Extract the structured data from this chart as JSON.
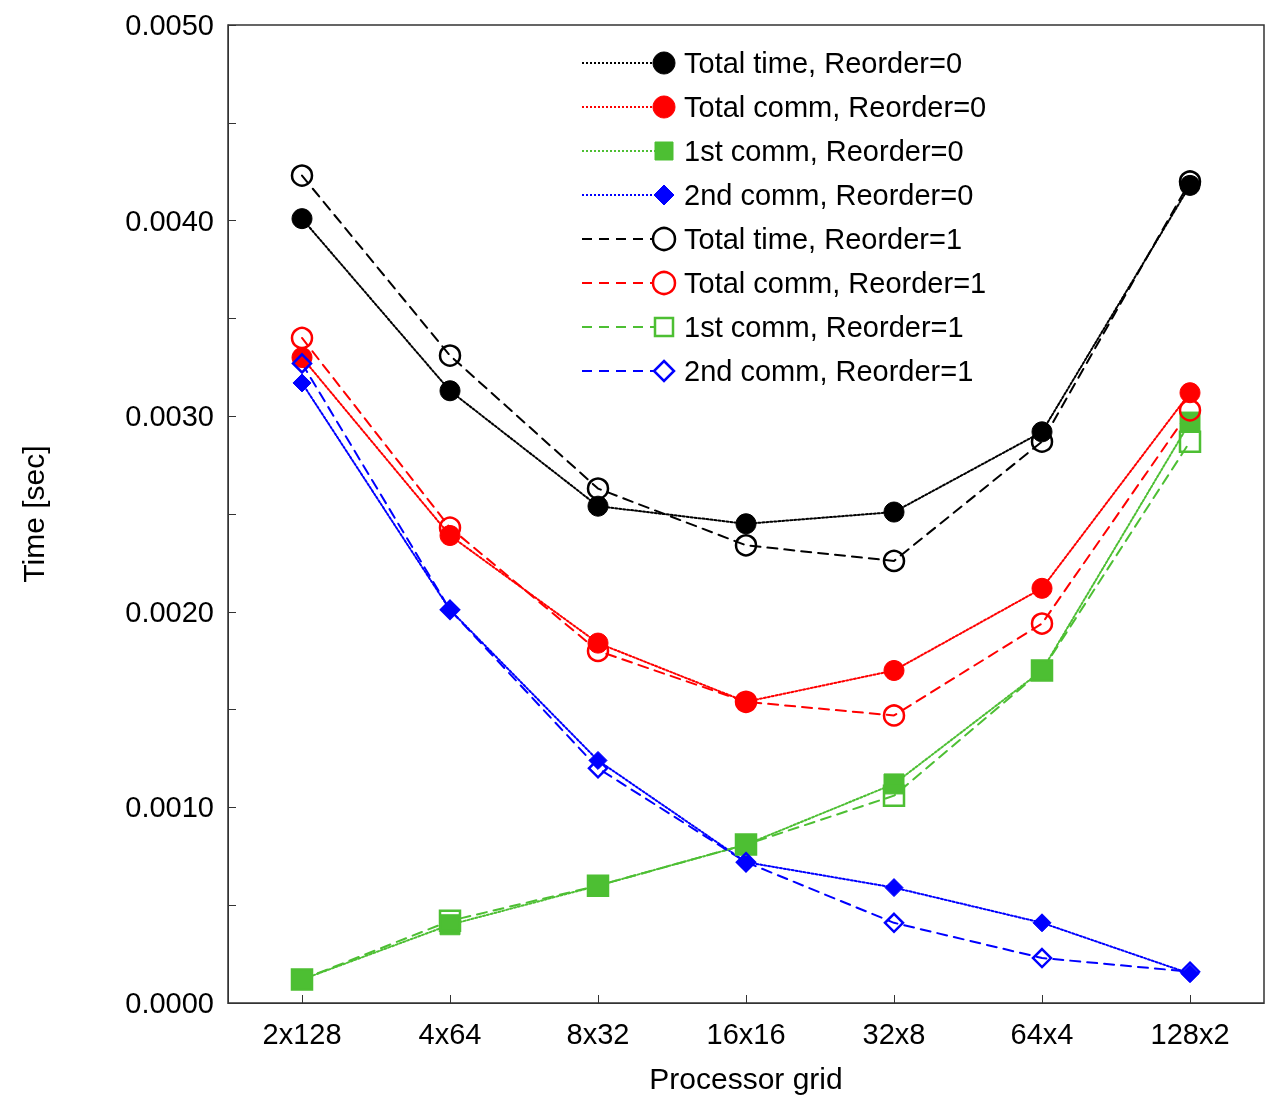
{
  "chart_data": {
    "type": "line",
    "xlabel": "Processor grid",
    "ylabel": "Time [sec]",
    "categories": [
      "2x128",
      "4x64",
      "8x32",
      "16x16",
      "32x8",
      "64x4",
      "128x2"
    ],
    "ylim": [
      0,
      0.005
    ],
    "yticks": [
      {
        "value": 0,
        "label": "0.0000"
      },
      {
        "value": 0.0005,
        "label": null
      },
      {
        "value": 0.001,
        "label": "0.0010"
      },
      {
        "value": 0.0015,
        "label": null
      },
      {
        "value": 0.002,
        "label": "0.0020"
      },
      {
        "value": 0.0025,
        "label": null
      },
      {
        "value": 0.003,
        "label": "0.0030"
      },
      {
        "value": 0.0035,
        "label": null
      },
      {
        "value": 0.004,
        "label": "0.0040"
      },
      {
        "value": 0.0045,
        "label": null
      },
      {
        "value": 0.005,
        "label": "0.0050"
      }
    ],
    "grid": false,
    "legend": "top right",
    "series": [
      {
        "name": "Total time, Reorder=0",
        "color": "#000000",
        "marker": "circle",
        "line_style": "dotted",
        "values": [
          0.00401,
          0.00313,
          0.00254,
          0.00245,
          0.00251,
          0.00292,
          0.00418
        ]
      },
      {
        "name": "Total comm, Reorder=0",
        "color": "#ff0000",
        "marker": "circle",
        "line_style": "dotted",
        "values": [
          0.0033,
          0.00239,
          0.00184,
          0.00154,
          0.0017,
          0.00212,
          0.00312
        ]
      },
      {
        "name": "1st comm, Reorder=0",
        "color": "#4dbf33",
        "marker": "square",
        "line_style": "dotted",
        "values": [
          0.00012,
          0.0004,
          0.0006,
          0.00081,
          0.00112,
          0.0017,
          0.00297
        ]
      },
      {
        "name": "2nd comm, Reorder=0",
        "color": "#0000ff",
        "marker": "diamond",
        "line_style": "dotted",
        "values": [
          0.00317,
          0.00201,
          0.00124,
          0.00072,
          0.00059,
          0.00041,
          0.00015
        ]
      },
      {
        "name": "Total time, Reorder=1",
        "color": "#000000",
        "marker": "circle",
        "line_style": "dashed",
        "values": [
          0.00423,
          0.00331,
          0.00263,
          0.00234,
          0.00226,
          0.00287,
          0.0042
        ]
      },
      {
        "name": "Total comm, Reorder=1",
        "color": "#ff0000",
        "marker": "circle",
        "line_style": "dashed",
        "values": [
          0.0034,
          0.00243,
          0.0018,
          0.00154,
          0.00147,
          0.00194,
          0.00303
        ]
      },
      {
        "name": "1st comm, Reorder=1",
        "color": "#4dbf33",
        "marker": "square",
        "line_style": "dashed",
        "values": [
          0.00012,
          0.00042,
          0.0006,
          0.00081,
          0.00106,
          0.0017,
          0.00287
        ]
      },
      {
        "name": "2nd comm, Reorder=1",
        "color": "#0000ff",
        "marker": "diamond",
        "line_style": "dashed",
        "values": [
          0.00327,
          0.00201,
          0.0012,
          0.00072,
          0.00041,
          0.00023,
          0.00016
        ]
      }
    ]
  }
}
